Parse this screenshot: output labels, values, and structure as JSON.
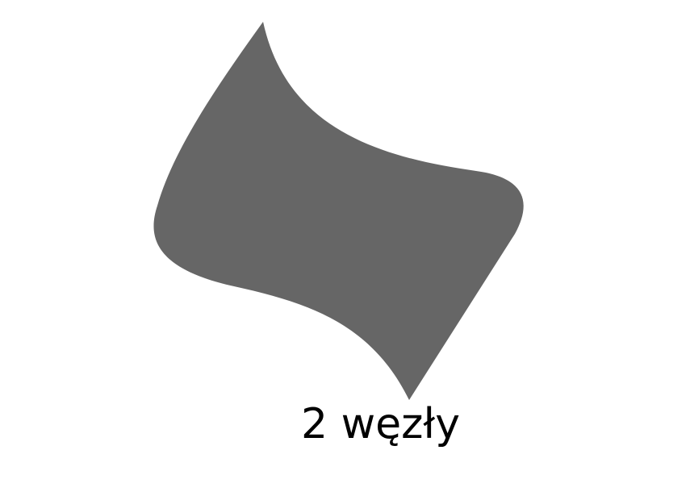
{
  "figure": {
    "caption": "2 węzły",
    "shape": {
      "kind": "curved-quadrilateral",
      "fill": "#666666"
    },
    "background": "#ffffff",
    "text_color": "#000000"
  }
}
